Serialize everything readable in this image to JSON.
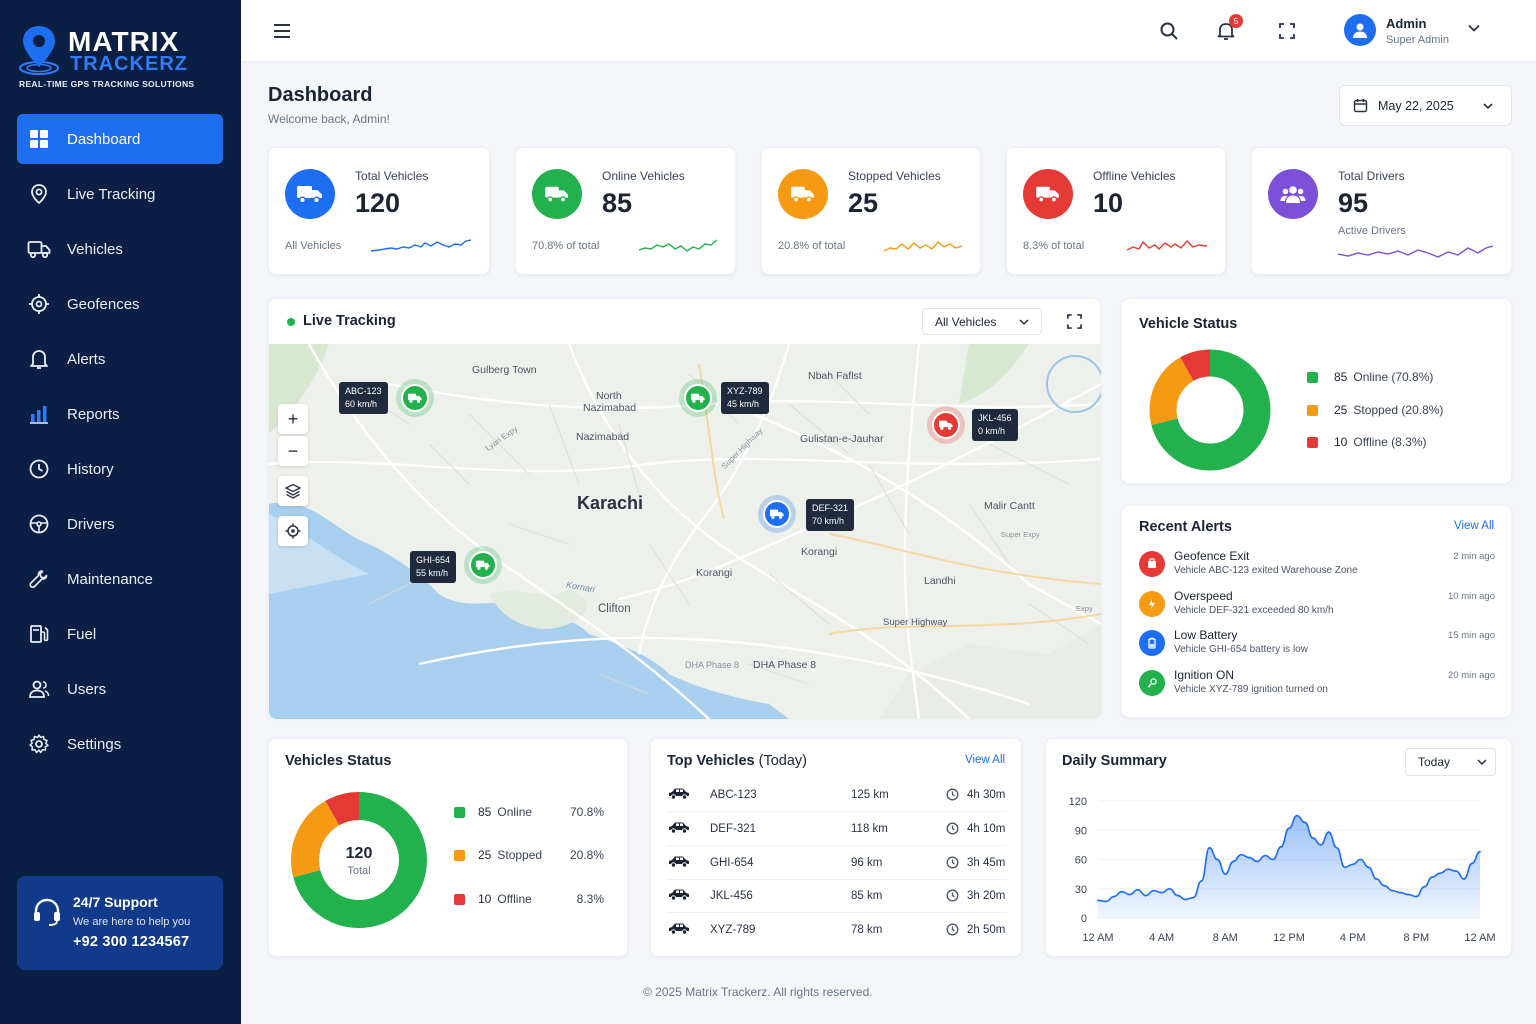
{
  "brand": {
    "name_line1": "MATRIX",
    "name_line2": "TRACKERZ",
    "tagline": "REAL-TIME GPS TRACKING SOLUTIONS"
  },
  "sidebar": {
    "items": [
      {
        "label": "Dashboard",
        "icon": "dashboard-icon",
        "active": true
      },
      {
        "label": "Live Tracking",
        "icon": "location-pin-icon"
      },
      {
        "label": "Vehicles",
        "icon": "truck-icon"
      },
      {
        "label": "Geofences",
        "icon": "target-icon"
      },
      {
        "label": "Alerts",
        "icon": "bell-icon"
      },
      {
        "label": "Reports",
        "icon": "bar-chart-icon"
      },
      {
        "label": "History",
        "icon": "clock-icon"
      },
      {
        "label": "Drivers",
        "icon": "steering-wheel-icon"
      },
      {
        "label": "Maintenance",
        "icon": "wrench-icon"
      },
      {
        "label": "Fuel",
        "icon": "fuel-pump-icon"
      },
      {
        "label": "Users",
        "icon": "users-icon"
      },
      {
        "label": "Settings",
        "icon": "gear-icon"
      }
    ],
    "support": {
      "title": "24/7 Support",
      "subtitle": "We are here to help you",
      "phone": "+92 300 1234567"
    }
  },
  "topbar": {
    "notification_count": "5",
    "user_name": "Admin",
    "user_role": "Super Admin"
  },
  "page": {
    "title": "Dashboard",
    "subtitle": "Welcome back, Admin!",
    "date": "May 22, 2025"
  },
  "stats": [
    {
      "label": "Total Vehicles",
      "value": "120",
      "foot": "All Vehicles",
      "color": "#1d6ef0"
    },
    {
      "label": "Online Vehicles",
      "value": "85",
      "foot": "70.8% of total",
      "color": "#22b14c"
    },
    {
      "label": "Stopped Vehicles",
      "value": "25",
      "foot": "20.8% of total",
      "color": "#f59a12"
    },
    {
      "label": "Offline Vehicles",
      "value": "10",
      "foot": "8.3% of total",
      "color": "#e53935"
    },
    {
      "label": "Total Drivers",
      "value": "95",
      "foot": "Active Drivers",
      "color": "#7b4fd8"
    }
  ],
  "live_tracking": {
    "title": "Live Tracking",
    "filter": "All Vehicles",
    "map_labels": [
      "Gulberg Town",
      "North",
      "Nazimabad",
      "Nazimabad",
      "Nbah Faflst",
      "Gulistan-e-Jauhar",
      "Karachi",
      "Malir Cantt",
      "Korangi",
      "Korangi",
      "Landhi",
      "Clifton",
      "Super Highway",
      "DHA Phase 8",
      "DHA Phase 8",
      "Lyari Expy",
      "Super Highway",
      "Kornari",
      "Super Expy",
      "Expy"
    ],
    "vehicles": [
      {
        "id": "ABC-123",
        "speed": "60 km/h",
        "status": "online"
      },
      {
        "id": "XYZ-789",
        "speed": "45 km/h",
        "status": "online"
      },
      {
        "id": "JKL-456",
        "speed": "0 km/h",
        "status": "offline"
      },
      {
        "id": "DEF-321",
        "speed": "70 km/h",
        "status": "moving"
      },
      {
        "id": "GHI-654",
        "speed": "55 km/h",
        "status": "online"
      }
    ]
  },
  "vehicle_status": {
    "title": "Vehicle Status",
    "items": [
      {
        "count": "85",
        "label": "Online (70.8%)",
        "color": "#22b14c",
        "value": 85
      },
      {
        "count": "25",
        "label": "Stopped (20.8%)",
        "color": "#f59a12",
        "value": 25
      },
      {
        "count": "10",
        "label": "Offline (8.3%)",
        "color": "#e53935",
        "value": 10
      }
    ]
  },
  "recent_alerts": {
    "title": "Recent Alerts",
    "view_all": "View All",
    "items": [
      {
        "title": "Geofence Exit",
        "desc": "Vehicle ABC-123 exited Warehouse Zone",
        "time": "2 min ago",
        "color": "#e53935"
      },
      {
        "title": "Overspeed",
        "desc": "Vehicle DEF-321 exceeded 80 km/h",
        "time": "10 min ago",
        "color": "#f59a12"
      },
      {
        "title": "Low Battery",
        "desc": "Vehicle GHI-654 battery is low",
        "time": "15 min ago",
        "color": "#1d6ef0"
      },
      {
        "title": "Ignition ON",
        "desc": "Vehicle XYZ-789 ignition turned on",
        "time": "20 min ago",
        "color": "#22b14c"
      }
    ]
  },
  "vehicles_status_card": {
    "title": "Vehicles Status",
    "center_value": "120",
    "center_label": "Total",
    "items": [
      {
        "count": "85",
        "label": "Online",
        "pct": "70.8%",
        "color": "#22b14c",
        "value": 85
      },
      {
        "count": "25",
        "label": "Stopped",
        "pct": "20.8%",
        "color": "#f59a12",
        "value": 25
      },
      {
        "count": "10",
        "label": "Offline",
        "pct": "8.3%",
        "color": "#e53935",
        "value": 10
      }
    ]
  },
  "top_vehicles": {
    "title": "Top Vehicles",
    "title_suffix": "(Today)",
    "view_all": "View All",
    "rows": [
      {
        "id": "ABC-123",
        "distance": "125 km",
        "duration": "4h 30m"
      },
      {
        "id": "DEF-321",
        "distance": "118 km",
        "duration": "4h 10m"
      },
      {
        "id": "GHI-654",
        "distance": "96 km",
        "duration": "3h 45m"
      },
      {
        "id": "JKL-456",
        "distance": "85 km",
        "duration": "3h 20m"
      },
      {
        "id": "XYZ-789",
        "distance": "78 km",
        "duration": "2h 50m"
      }
    ]
  },
  "daily_summary": {
    "title": "Daily Summary",
    "period": "Today"
  },
  "chart_data": {
    "type": "area",
    "title": "Daily Summary",
    "x_tick_labels": [
      "12 AM",
      "4 AM",
      "8 AM",
      "12 PM",
      "4 PM",
      "8 PM",
      "12 AM"
    ],
    "y_ticks": [
      0,
      30,
      60,
      90,
      120
    ],
    "ylim": [
      0,
      120
    ],
    "xlim": [
      0,
      24
    ],
    "grid": true,
    "x": [
      0,
      0.5,
      1,
      1.5,
      2,
      2.5,
      3,
      3.5,
      4,
      4.5,
      5,
      5.5,
      6,
      6.5,
      7,
      7.5,
      8,
      8.5,
      9,
      9.5,
      10,
      10.5,
      11,
      11.5,
      12,
      12.5,
      13,
      13.5,
      14,
      14.5,
      15,
      15.5,
      16,
      16.5,
      17,
      17.5,
      18,
      18.5,
      19,
      19.5,
      20,
      20.5,
      21,
      21.5,
      22,
      22.5,
      23,
      23.5,
      24
    ],
    "values": [
      18,
      17,
      22,
      27,
      24,
      29,
      23,
      28,
      26,
      30,
      23,
      19,
      21,
      38,
      72,
      60,
      45,
      58,
      65,
      62,
      58,
      64,
      60,
      73,
      92,
      105,
      98,
      82,
      75,
      88,
      72,
      52,
      55,
      60,
      52,
      40,
      33,
      28,
      26,
      24,
      22,
      32,
      42,
      46,
      50,
      48,
      40,
      56,
      68
    ]
  },
  "footer": "©  2025 Matrix Trackerz. All rights reserved."
}
